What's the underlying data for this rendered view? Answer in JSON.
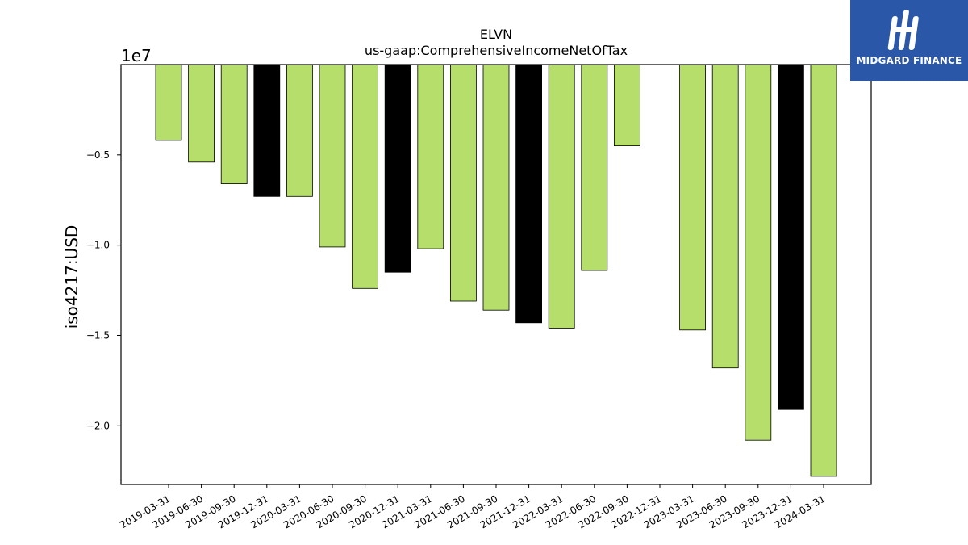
{
  "brand": {
    "name": "MIDGARD FINANCE",
    "bg_color": "#2a57a8"
  },
  "chart_data": {
    "type": "bar",
    "title": "ELVN",
    "subtitle": "us-gaap:ComprehensiveIncomeNetOfTax",
    "ylabel": "iso4217:USD",
    "xlabel": "",
    "y_offset_label": "1e7",
    "y_ticks": [
      -0.5,
      -1.0,
      -1.5,
      -2.0
    ],
    "y_tick_labels": [
      "−0.5",
      "−1.0",
      "−1.5",
      "−2.0"
    ],
    "ylim": [
      -23250000,
      0
    ],
    "categories": [
      "2019-03-31",
      "2019-06-30",
      "2019-09-30",
      "2019-12-31",
      "2020-03-31",
      "2020-06-30",
      "2020-09-30",
      "2020-12-31",
      "2021-03-31",
      "2021-06-30",
      "2021-09-30",
      "2021-12-31",
      "2022-03-31",
      "2022-06-30",
      "2022-09-30",
      "2022-12-31",
      "2023-03-31",
      "2023-06-30",
      "2023-09-30",
      "2023-12-31",
      "2024-03-31"
    ],
    "values": [
      -4200000,
      -5400000,
      -6600000,
      -7300000,
      -7300000,
      -10100000,
      -12400000,
      -11500000,
      -10200000,
      -13100000,
      -13600000,
      -14300000,
      -14600000,
      -11400000,
      -4500000,
      null,
      -14700000,
      -16800000,
      -20800000,
      -19100000,
      -22800000
    ],
    "bar_colors": [
      "#b5de6b",
      "#b5de6b",
      "#b5de6b",
      "#000000",
      "#b5de6b",
      "#b5de6b",
      "#b5de6b",
      "#000000",
      "#b5de6b",
      "#b5de6b",
      "#b5de6b",
      "#000000",
      "#b5de6b",
      "#b5de6b",
      "#b5de6b",
      "#000000",
      "#b5de6b",
      "#b5de6b",
      "#b5de6b",
      "#000000",
      "#b5de6b"
    ],
    "grid": false,
    "legend": "none"
  }
}
